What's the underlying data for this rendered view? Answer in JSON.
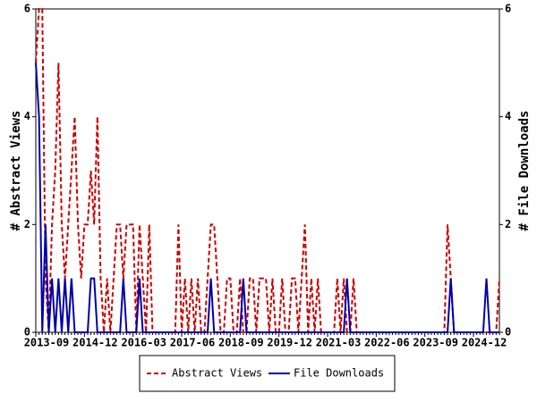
{
  "chart_data": {
    "type": "line",
    "y_label": "# Abstract Views",
    "y2_label": "# File Downloads",
    "categories": [
      "2013-09",
      null,
      null,
      null,
      null,
      null,
      null,
      null,
      null,
      null,
      null,
      null,
      null,
      null,
      null,
      "2014-12",
      null,
      null,
      null,
      null,
      null,
      null,
      null,
      null,
      null,
      null,
      null,
      null,
      null,
      null,
      "2016-03",
      null,
      null,
      null,
      null,
      null,
      null,
      null,
      null,
      null,
      null,
      null,
      null,
      null,
      null,
      "2017-06",
      null,
      null,
      null,
      null,
      null,
      null,
      null,
      null,
      null,
      null,
      null,
      null,
      null,
      null,
      "2018-09",
      null,
      null,
      null,
      null,
      null,
      null,
      null,
      null,
      null,
      null,
      null,
      null,
      null,
      null,
      "2019-12",
      null,
      null,
      null,
      null,
      null,
      null,
      null,
      null,
      null,
      null,
      null,
      null,
      null,
      null,
      "2021-03",
      null,
      null,
      null,
      null,
      null,
      null,
      null,
      null,
      null,
      null,
      null,
      null,
      null,
      null,
      "2022-06",
      null,
      null,
      null,
      null,
      null,
      null,
      null,
      null,
      null,
      null,
      null,
      null,
      null,
      null,
      "2023-09",
      null,
      null,
      null,
      null,
      null,
      null,
      null,
      null,
      null,
      null,
      null,
      null,
      null,
      null,
      "2024-12",
      null,
      null,
      null,
      null,
      null,
      null,
      null,
      null
    ],
    "series": [
      {
        "name": "Abstract Views",
        "color": "#cc0000",
        "dash": true,
        "axis": "y",
        "values": [
          5,
          6,
          6,
          1,
          0,
          2,
          3,
          5,
          2,
          1,
          2,
          3,
          4,
          2,
          1,
          2,
          2,
          3,
          2,
          4,
          1,
          0,
          1,
          0,
          1,
          2,
          2,
          1,
          2,
          2,
          2,
          0,
          2,
          1,
          0,
          2,
          0,
          0,
          0,
          0,
          0,
          0,
          0,
          0,
          2,
          0,
          1,
          0,
          1,
          0,
          1,
          0,
          0,
          1,
          2,
          2,
          1,
          0,
          0,
          1,
          1,
          0,
          0,
          1,
          0,
          0,
          1,
          1,
          0,
          1,
          1,
          1,
          0,
          1,
          0,
          0,
          1,
          0,
          0,
          1,
          1,
          0,
          1,
          2,
          0,
          1,
          0,
          1,
          0,
          0,
          0,
          0,
          0,
          1,
          0,
          1,
          0,
          0,
          1,
          0,
          0,
          0,
          0,
          0,
          0,
          0,
          0,
          0,
          0,
          0,
          0,
          0,
          0,
          0,
          0,
          0,
          0,
          0,
          0,
          0,
          0,
          0,
          0,
          0,
          0,
          0,
          0,
          2,
          1,
          0,
          0,
          0,
          0,
          0,
          0,
          0,
          0,
          0,
          0,
          0,
          0,
          0,
          0,
          1
        ]
      },
      {
        "name": "File Downloads",
        "color": "#0000aa",
        "dash": false,
        "axis": "y2",
        "values": [
          5,
          4,
          0,
          2,
          0,
          1,
          0,
          1,
          0,
          1,
          0,
          1,
          0,
          0,
          0,
          0,
          0,
          1,
          1,
          0,
          0,
          0,
          0,
          0,
          0,
          0,
          0,
          1,
          0,
          0,
          0,
          0,
          1,
          0,
          0,
          0,
          0,
          0,
          0,
          0,
          0,
          0,
          0,
          0,
          0,
          0,
          0,
          0,
          0,
          0,
          0,
          0,
          0,
          0,
          1,
          0,
          0,
          0,
          0,
          0,
          0,
          0,
          0,
          0,
          1,
          0,
          0,
          0,
          0,
          0,
          0,
          0,
          0,
          0,
          0,
          0,
          0,
          0,
          0,
          0,
          0,
          0,
          0,
          0,
          0,
          0,
          0,
          0,
          0,
          0,
          0,
          0,
          0,
          0,
          0,
          0,
          1,
          0,
          0,
          0,
          0,
          0,
          0,
          0,
          0,
          0,
          0,
          0,
          0,
          0,
          0,
          0,
          0,
          0,
          0,
          0,
          0,
          0,
          0,
          0,
          0,
          0,
          0,
          0,
          0,
          0,
          0,
          0,
          1,
          0,
          0,
          0,
          0,
          0,
          0,
          0,
          0,
          0,
          0,
          1,
          0,
          0,
          0,
          0
        ]
      }
    ],
    "ylim": [
      0,
      6
    ],
    "yticks": [
      0,
      2,
      4,
      6
    ],
    "y2lim": [
      0,
      6
    ],
    "y2ticks": [
      0,
      2,
      4,
      6
    ],
    "legend": "bottom"
  }
}
